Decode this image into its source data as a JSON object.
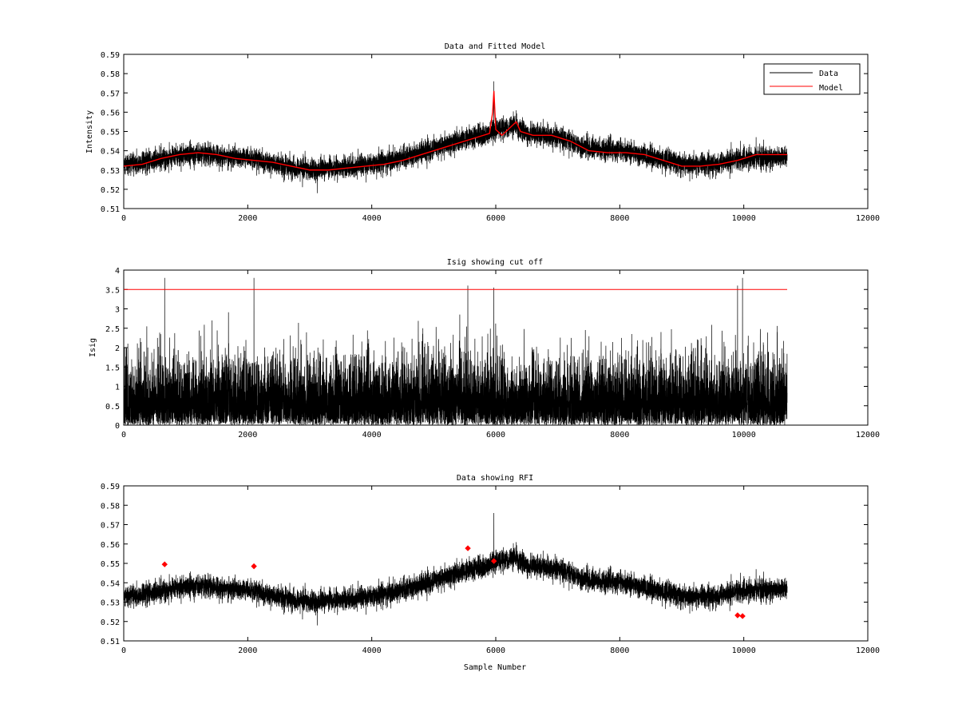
{
  "colors": {
    "data": "#000000",
    "model": "#ff0000",
    "cutoff": "#ff0000",
    "rfi": "#ff0000",
    "background": "#ffffff"
  },
  "chart_data": [
    {
      "type": "line",
      "title": "Data and Fitted Model",
      "xlabel": "",
      "ylabel": "Intensity",
      "xlim": [
        0,
        12000
      ],
      "ylim": [
        0.51,
        0.59
      ],
      "xticks": [
        0,
        2000,
        4000,
        6000,
        8000,
        10000,
        12000
      ],
      "yticks": [
        0.51,
        0.52,
        0.53,
        0.54,
        0.55,
        0.56,
        0.57,
        0.58,
        0.59
      ],
      "grid": false,
      "legend": {
        "position": "top-right",
        "entries": [
          "Data",
          "Model"
        ]
      },
      "series": [
        {
          "name": "Data",
          "color": "#000000",
          "style": "noisy",
          "x_range": [
            0,
            10700
          ],
          "n_points": 10700,
          "center": {
            "x": [
              0,
              500,
              1000,
              1500,
              2000,
              2500,
              3000,
              3500,
              4000,
              4500,
              5000,
              5500,
              5900,
              6000,
              6300,
              6500,
              7000,
              7500,
              8000,
              8500,
              9000,
              9500,
              10000,
              10700
            ],
            "y": [
              0.532,
              0.535,
              0.538,
              0.538,
              0.536,
              0.533,
              0.53,
              0.531,
              0.533,
              0.536,
              0.541,
              0.546,
              0.549,
              0.551,
              0.553,
              0.549,
              0.547,
              0.541,
              0.54,
              0.537,
              0.533,
              0.533,
              0.536,
              0.537
            ]
          },
          "noise_amplitude": 0.005,
          "spikes": [
            {
              "x": 5970,
              "y": 0.576
            },
            {
              "x": 6330,
              "y": 0.561
            },
            {
              "x": 3120,
              "y": 0.518
            }
          ]
        },
        {
          "name": "Model",
          "color": "#ff0000",
          "style": "smooth",
          "x": [
            0,
            300,
            600,
            900,
            1200,
            1500,
            1800,
            2100,
            2400,
            2700,
            3000,
            3300,
            3600,
            3900,
            4200,
            4500,
            4800,
            5100,
            5400,
            5700,
            5900,
            5950,
            5970,
            6000,
            6100,
            6330,
            6400,
            6600,
            6900,
            7200,
            7500,
            7800,
            8100,
            8400,
            8700,
            9000,
            9300,
            9600,
            9900,
            10200,
            10500,
            10700
          ],
          "y": [
            0.532,
            0.533,
            0.536,
            0.538,
            0.539,
            0.538,
            0.536,
            0.535,
            0.534,
            0.532,
            0.53,
            0.53,
            0.531,
            0.532,
            0.533,
            0.535,
            0.538,
            0.541,
            0.544,
            0.547,
            0.549,
            0.56,
            0.571,
            0.551,
            0.548,
            0.555,
            0.55,
            0.548,
            0.548,
            0.545,
            0.54,
            0.539,
            0.539,
            0.538,
            0.535,
            0.532,
            0.532,
            0.533,
            0.535,
            0.538,
            0.538,
            0.538
          ]
        }
      ]
    },
    {
      "type": "line",
      "title": "Isig showing cut off",
      "xlabel": "",
      "ylabel": "Isig",
      "xlim": [
        0,
        12000
      ],
      "ylim": [
        0,
        4
      ],
      "xticks": [
        0,
        2000,
        4000,
        6000,
        8000,
        10000,
        12000
      ],
      "yticks": [
        0,
        0.5,
        1,
        1.5,
        2,
        2.5,
        3,
        3.5,
        4
      ],
      "grid": false,
      "series": [
        {
          "color": "#000000",
          "style": "abs-noise",
          "x_range": [
            0,
            10700
          ],
          "n_points": 10700,
          "scale": 0.8,
          "spikes": [
            {
              "x": 660,
              "y": 3.8
            },
            {
              "x": 2100,
              "y": 3.8
            },
            {
              "x": 5550,
              "y": 3.6
            },
            {
              "x": 5970,
              "y": 3.55
            },
            {
              "x": 9900,
              "y": 3.6
            },
            {
              "x": 9980,
              "y": 3.8
            }
          ]
        },
        {
          "color": "#ff0000",
          "style": "hline",
          "x": [
            0,
            10700
          ],
          "y": [
            3.5,
            3.5
          ]
        }
      ]
    },
    {
      "type": "scatter",
      "title": "Data showing RFI",
      "xlabel": "Sample Number",
      "ylabel": "",
      "xlim": [
        0,
        12000
      ],
      "ylim": [
        0.51,
        0.59
      ],
      "xticks": [
        0,
        2000,
        4000,
        6000,
        8000,
        10000,
        12000
      ],
      "yticks": [
        0.51,
        0.52,
        0.53,
        0.54,
        0.55,
        0.56,
        0.57,
        0.58,
        0.59
      ],
      "grid": false,
      "series": [
        {
          "color": "#000000",
          "style": "noisy",
          "use_data_of_panel": 0
        },
        {
          "color": "#ff0000",
          "style": "markers",
          "x": [
            660,
            2100,
            5550,
            5970,
            9900,
            9980
          ],
          "y": [
            0.5495,
            0.5485,
            0.5578,
            0.5512,
            0.5232,
            0.5228
          ]
        }
      ]
    }
  ]
}
